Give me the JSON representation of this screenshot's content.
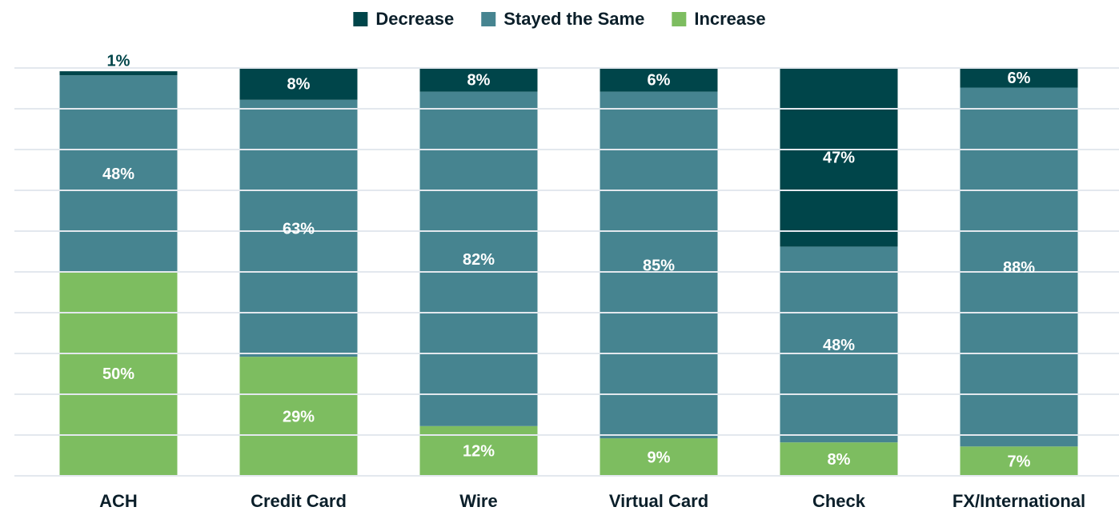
{
  "chart_data": {
    "type": "stacked_bar",
    "categories": [
      "ACH",
      "Credit Card",
      "Wire",
      "Virtual Card",
      "Check",
      "FX/International"
    ],
    "series": [
      {
        "name": "Increase",
        "color": "#7dbd60",
        "values": [
          50,
          29,
          12,
          9,
          8,
          7
        ],
        "value_labels": [
          "50%",
          "29%",
          "12%",
          "9%",
          "8%",
          "7%"
        ]
      },
      {
        "name": "Stayed the Same",
        "color": "#468490",
        "values": [
          48,
          63,
          82,
          85,
          48,
          88
        ],
        "value_labels": [
          "48%",
          "63%",
          "82%",
          "85%",
          "48%",
          "88%"
        ]
      },
      {
        "name": "Decrease",
        "color": "#00454a",
        "values": [
          1,
          8,
          8,
          6,
          47,
          6
        ],
        "value_labels": [
          "1%",
          "8%",
          "8%",
          "6%",
          "47%",
          "6%"
        ]
      }
    ],
    "legend_order": [
      "Decrease",
      "Stayed the Same",
      "Increase"
    ],
    "ylim": [
      0,
      100
    ],
    "yticks": [
      0,
      10,
      20,
      30,
      40,
      50,
      60,
      70,
      80,
      90,
      100
    ],
    "grid": true
  }
}
